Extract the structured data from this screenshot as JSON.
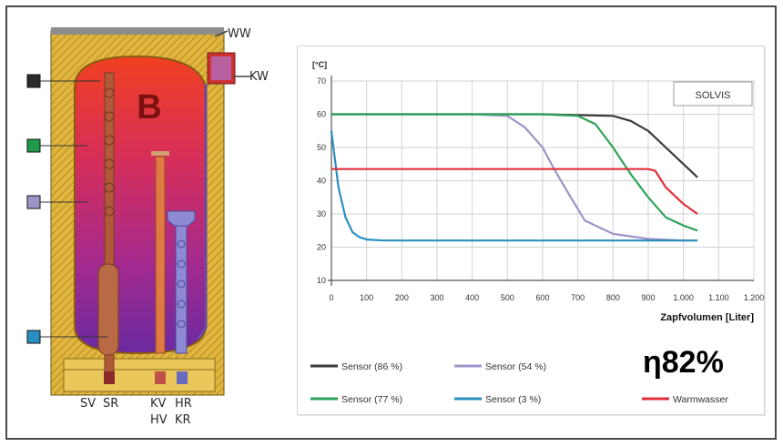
{
  "tank": {
    "letter": "B",
    "labels": {
      "ww": "WW",
      "kw": "KW",
      "sv": "SV",
      "sr": "SR",
      "kv": "KV",
      "hv": "HV",
      "hr": "HR",
      "kr": "KR"
    },
    "sensor_badges": [
      {
        "color": "#2b2b2b"
      },
      {
        "color": "#1f9a4a"
      },
      {
        "color": "#9d94c8"
      },
      {
        "color": "#2a8fc0"
      }
    ]
  },
  "efficiency": "η82%",
  "chart_data": {
    "type": "line",
    "brand": "SOLVIS",
    "unit_label": "[°C]",
    "xlabel": "Zapfvolumen [Liter]",
    "xlim": [
      0,
      1200
    ],
    "ylim": [
      10,
      70
    ],
    "x_ticks": [
      "0",
      "100",
      "200",
      "300",
      "400",
      "500",
      "600",
      "700",
      "800",
      "900",
      "1.000",
      "1.100",
      "1.200"
    ],
    "y_ticks": [
      "10",
      "20",
      "30",
      "40",
      "50",
      "60",
      "70"
    ],
    "grid": true,
    "legend_position": "bottom",
    "series": [
      {
        "name": "Sensor  (86 %)",
        "color": "#3a3a3a",
        "x": [
          0,
          200,
          400,
          600,
          800,
          850,
          900,
          950,
          1000,
          1040
        ],
        "y": [
          60,
          60,
          60,
          60,
          59.5,
          58,
          55,
          50,
          45,
          41
        ]
      },
      {
        "name": "Sensor  (54 %)",
        "color": "#9d94c8",
        "x": [
          0,
          200,
          400,
          500,
          550,
          600,
          630,
          680,
          720,
          800,
          900,
          1000,
          1040
        ],
        "y": [
          60,
          60,
          60,
          59.5,
          56,
          50,
          44,
          35,
          28,
          24,
          22.5,
          22,
          22
        ]
      },
      {
        "name": "Sensor  (77 %)",
        "color": "#2ea35a",
        "x": [
          0,
          200,
          400,
          600,
          700,
          750,
          800,
          850,
          900,
          950,
          1000,
          1040
        ],
        "y": [
          60,
          60,
          60,
          60,
          59.5,
          57,
          50,
          42,
          35,
          29,
          26.5,
          25
        ]
      },
      {
        "name": "Sensor  (3 %)",
        "color": "#2a8fc0",
        "x": [
          0,
          20,
          40,
          60,
          80,
          100,
          150,
          300,
          600,
          900,
          1040
        ],
        "y": [
          55,
          38,
          29,
          24.5,
          23,
          22.3,
          22,
          22,
          22,
          22,
          22
        ]
      },
      {
        "name": "Warmwasser",
        "color": "#e0303a",
        "x": [
          0,
          100,
          300,
          500,
          700,
          900,
          920,
          950,
          1000,
          1040
        ],
        "y": [
          43.5,
          43.5,
          43.5,
          43.5,
          43.5,
          43.5,
          43,
          38,
          33,
          30
        ]
      }
    ]
  }
}
